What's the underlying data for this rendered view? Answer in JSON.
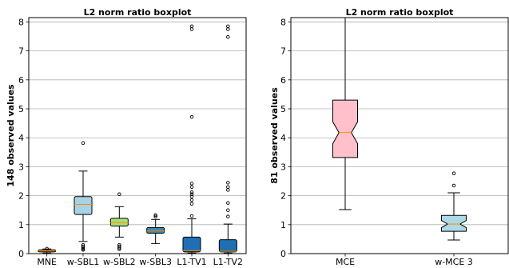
{
  "chart_data": [
    {
      "type": "box",
      "title": "L2 norm ratio boxplot",
      "ylabel": "148 observed values",
      "xlabel": "",
      "ylim": [
        0,
        8.15
      ],
      "yticks": [
        0,
        1,
        2,
        3,
        4,
        5,
        6,
        7,
        8
      ],
      "grid": "horizontal",
      "notched": false,
      "categories": [
        "MNE",
        "w-SBL1",
        "w-SBL2",
        "w-SBL3",
        "L1-TV1",
        "L1-TV2"
      ],
      "boxes": [
        {
          "label": "MNE",
          "color": "#e8855a",
          "median_color": "#ff8c00",
          "whislo": 0.02,
          "q1": 0.06,
          "med": 0.1,
          "q3": 0.13,
          "whishi": 0.16,
          "fliers": [
            0.17
          ]
        },
        {
          "label": "w-SBL1",
          "color": "#a6d3e6",
          "median_color": "#ff8c00",
          "whislo": 0.42,
          "q1": 1.35,
          "med": 1.7,
          "q3": 1.97,
          "whishi": 2.85,
          "fliers": [
            3.82,
            0.3,
            0.25,
            0.2,
            0.16,
            0.13
          ]
        },
        {
          "label": "w-SBL2",
          "color": "#a9df78",
          "median_color": "#ff8c00",
          "whislo": 0.57,
          "q1": 0.95,
          "med": 1.07,
          "q3": 1.22,
          "whishi": 1.62,
          "fliers": [
            2.05,
            0.3,
            0.25,
            0.2,
            0.15
          ]
        },
        {
          "label": "w-SBL3",
          "color": "#3a85ae",
          "median_color": "#ff8c00",
          "whislo": 0.35,
          "q1": 0.7,
          "med": 0.78,
          "q3": 0.9,
          "whishi": 1.18,
          "fliers": [
            1.33,
            1.28
          ]
        },
        {
          "label": "L1-TV1",
          "color": "#1f6fb2",
          "median_color": "#ff8c00",
          "whislo": 0.02,
          "q1": 0.06,
          "med": 0.1,
          "q3": 0.57,
          "whishi": 1.2,
          "fliers": [
            7.85,
            7.75,
            4.72,
            2.42,
            2.3,
            2.12,
            2.05,
            1.97,
            1.85,
            1.72,
            1.3
          ]
        },
        {
          "label": "L1-TV2",
          "color": "#1f6fb2",
          "median_color": "#ff8c00",
          "whislo": 0.02,
          "q1": 0.06,
          "med": 0.08,
          "q3": 0.48,
          "whishi": 1.02,
          "fliers": [
            7.85,
            7.75,
            7.48,
            2.45,
            2.3,
            2.2,
            1.75,
            1.5,
            1.28
          ]
        }
      ]
    },
    {
      "type": "box",
      "title": "L2 norm ratio boxplot",
      "ylabel": "81 observed values",
      "xlabel": "",
      "ylim": [
        0,
        8.15
      ],
      "yticks": [
        0,
        1,
        2,
        3,
        4,
        5,
        6,
        7,
        8
      ],
      "grid": "horizontal",
      "notched": true,
      "categories": [
        "MCE",
        "w-MCE 3"
      ],
      "boxes": [
        {
          "label": "MCE",
          "color": "#ffc0cb",
          "median_color": "#ff8c00",
          "whislo": 1.52,
          "q1": 3.32,
          "med": 4.18,
          "q3": 5.3,
          "whishi": 8.15,
          "notch_lo": 3.8,
          "notch_hi": 4.55,
          "fliers": []
        },
        {
          "label": "w-MCE 3",
          "color": "#add8e6",
          "median_color": "#ff8c00",
          "whislo": 0.47,
          "q1": 0.77,
          "med": 1.02,
          "q3": 1.32,
          "whishi": 2.1,
          "notch_lo": 0.9,
          "notch_hi": 1.14,
          "fliers": [
            2.77,
            2.35
          ]
        }
      ]
    }
  ]
}
